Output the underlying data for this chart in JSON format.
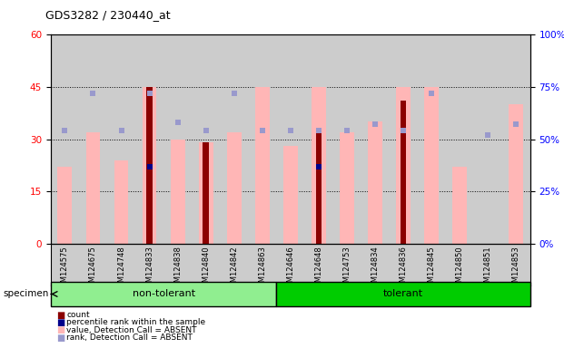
{
  "title": "GDS3282 / 230440_at",
  "samples": [
    "GSM124575",
    "GSM124675",
    "GSM124748",
    "GSM124833",
    "GSM124838",
    "GSM124840",
    "GSM124842",
    "GSM124863",
    "GSM124646",
    "GSM124648",
    "GSM124753",
    "GSM124834",
    "GSM124836",
    "GSM124845",
    "GSM124850",
    "GSM124851",
    "GSM124853"
  ],
  "non_tolerant_count": 8,
  "tolerant_count": 9,
  "value_absent": [
    22,
    32,
    24,
    45,
    30,
    29,
    32,
    45,
    28,
    45,
    32,
    35,
    45,
    45,
    22,
    null,
    40
  ],
  "rank_absent": [
    54,
    72,
    54,
    72,
    58,
    54,
    72,
    54,
    54,
    54,
    54,
    57,
    54,
    72,
    null,
    52,
    57
  ],
  "count": [
    null,
    null,
    null,
    45,
    null,
    29,
    null,
    null,
    null,
    33,
    null,
    null,
    41,
    null,
    null,
    null,
    null
  ],
  "percentile": [
    null,
    null,
    null,
    37,
    null,
    null,
    null,
    null,
    null,
    37,
    null,
    null,
    null,
    null,
    null,
    null,
    null
  ],
  "ylim_left": [
    0,
    60
  ],
  "ylim_right": [
    0,
    100
  ],
  "yticks_left": [
    0,
    15,
    30,
    45,
    60
  ],
  "yticks_right": [
    0,
    25,
    50,
    75,
    100
  ],
  "color_count": "#8B0000",
  "color_percentile": "#00008B",
  "color_value_absent": "#FFB6B6",
  "color_rank_absent": "#9999CC",
  "group_color_nontolerant": "#90EE90",
  "group_color_tolerant": "#00CC00",
  "legend_labels": [
    "count",
    "percentile rank within the sample",
    "value, Detection Call = ABSENT",
    "rank, Detection Call = ABSENT"
  ]
}
